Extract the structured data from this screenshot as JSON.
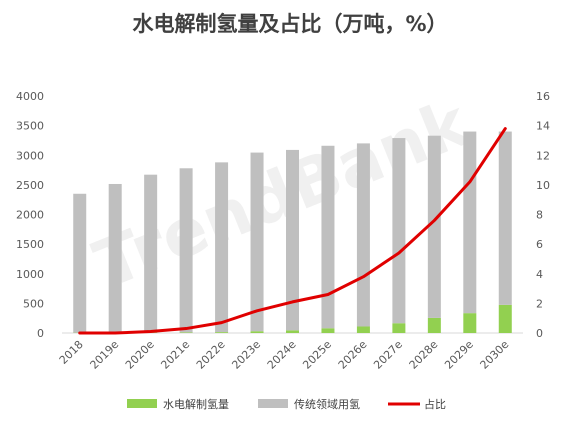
{
  "chart_data": {
    "type": "bar",
    "title": "水电解制氢量及占比（万吨，%）",
    "watermark": "TrendBank",
    "categories": [
      "2018",
      "2019e",
      "2020e",
      "2021e",
      "2022e",
      "2023e",
      "2024e",
      "2025e",
      "2026e",
      "2027e",
      "2028e",
      "2029e",
      "2030e"
    ],
    "stacked": true,
    "series": [
      {
        "name": "水电解制氢量",
        "kind": "bar",
        "axis": "left",
        "color": "#92D050",
        "values": [
          5,
          5,
          7,
          10,
          15,
          30,
          45,
          80,
          110,
          165,
          255,
          335,
          475
        ]
      },
      {
        "name": "传统领域用氢",
        "kind": "bar",
        "axis": "left",
        "color": "#BFBFBF",
        "values": [
          2345,
          2510,
          2665,
          2770,
          2865,
          3015,
          3045,
          3080,
          3090,
          3125,
          3075,
          3065,
          2925
        ]
      },
      {
        "name": "占比",
        "kind": "line",
        "axis": "right",
        "color": "#E00000",
        "values": [
          0.0,
          0.0,
          0.1,
          0.3,
          0.7,
          1.5,
          2.1,
          2.6,
          3.8,
          5.4,
          7.6,
          10.2,
          13.8
        ]
      }
    ],
    "y_left": {
      "min": 0,
      "max": 4000,
      "ticks": [
        0,
        500,
        1000,
        1500,
        2000,
        2500,
        3000,
        3500,
        4000
      ]
    },
    "y_right": {
      "min": 0,
      "max": 16,
      "ticks": [
        0,
        2,
        4,
        6,
        8,
        10,
        12,
        14,
        16
      ]
    },
    "legend_position": "bottom",
    "grid": false
  }
}
